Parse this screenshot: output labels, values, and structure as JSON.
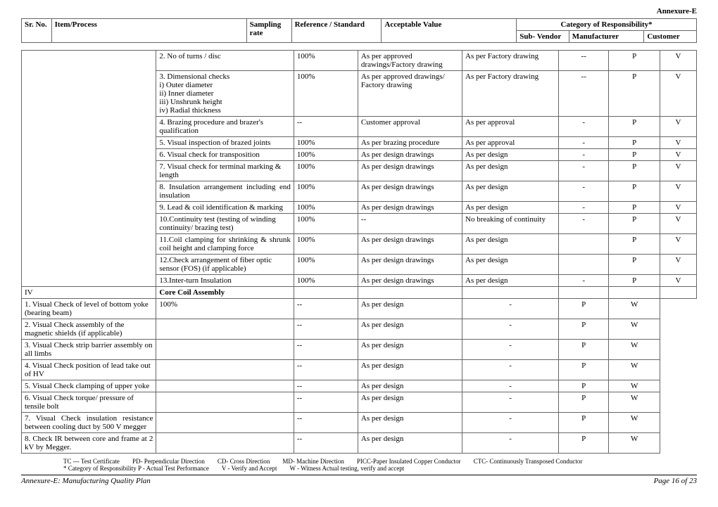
{
  "annexureTitle": "Annexure-E",
  "header": {
    "sr": "Sr. No.",
    "item": "Item/Process",
    "sampling": "Sampling rate",
    "reference": "Reference / Standard",
    "acceptable": "Acceptable Value",
    "category": "Category of Responsibility*",
    "sub": "Sub- Vendor",
    "man": "Manufacturer",
    "cust": "Customer"
  },
  "rows": [
    {
      "sr": "",
      "item": "2. No of turns / disc",
      "samp": "100%",
      "ref": "As per approved drawings/Factory drawing",
      "acc": "As per  Factory drawing",
      "sub": "--",
      "man": "P",
      "cust": "V"
    },
    {
      "sr": "",
      "item": "3. Dimensional checks\n    i) Outer diameter\n    ii) Inner diameter\n    iii) Unshrunk height\n    iv) Radial thickness",
      "samp": "100%",
      "ref": "As per approved drawings/\nFactory drawing",
      "acc": "As per  Factory drawing",
      "sub": "--",
      "man": "P",
      "cust": "V"
    },
    {
      "sr": "",
      "item": "4. Brazing procedure and brazer's qualification",
      "samp": "--",
      "ref": "Customer approval",
      "acc": "As per approval",
      "sub": "-",
      "man": "P",
      "cust": "V"
    },
    {
      "sr": "",
      "item": "5. Visual inspection of brazed joints",
      "samp": "100%",
      "ref": "As per brazing procedure",
      "acc": "As per approval",
      "sub": "-",
      "man": "P",
      "cust": "V"
    },
    {
      "sr": "",
      "item": "6. Visual check for transposition",
      "samp": "100%",
      "ref": "As per design drawings",
      "acc": "As per design",
      "sub": "-",
      "man": "P",
      "cust": "V"
    },
    {
      "sr": "",
      "item": "7. Visual check for terminal marking & length",
      "samp": "100%",
      "ref": "As per design drawings",
      "acc": "As per design",
      "sub": "-",
      "man": "P",
      "cust": "V"
    },
    {
      "sr": "",
      "item": "8. Insulation arrangement including end insulation",
      "samp": "100%",
      "ref": "As per design drawings",
      "acc": "As per design",
      "sub": "-",
      "man": "P",
      "cust": "V",
      "justify": true
    },
    {
      "sr": "",
      "item": "9. Lead & coil identification & marking",
      "samp": "100%",
      "ref": "As per design drawings",
      "acc": "As per design",
      "sub": "-",
      "man": "P",
      "cust": "V"
    },
    {
      "sr": "",
      "item": "10.Continuity test (testing of winding continuity/ brazing test)",
      "samp": "100%",
      "ref": "--",
      "acc": "No breaking of continuity",
      "sub": "-",
      "man": "P",
      "cust": "V"
    },
    {
      "sr": "",
      "item": "11.Coil clamping for shrinking & shrunk coil height and clamping force",
      "samp": "100%",
      "ref": "As per design drawings",
      "acc": "As per design",
      "sub": "",
      "man": "P",
      "cust": "V",
      "justify": true
    },
    {
      "sr": "",
      "item": "12.Check arrangement of fiber optic sensor (FOS) (if applicable)",
      "samp": "100%",
      "ref": "As per design drawings",
      "acc": "As per design",
      "sub": "",
      "man": "P",
      "cust": "V"
    },
    {
      "sr": "",
      "item": "13.Inter-turn Insulation",
      "samp": "100%",
      "ref": "As per design drawings",
      "acc": "As per design",
      "sub": "-",
      "man": "P",
      "cust": "V"
    }
  ],
  "section": {
    "sr": "IV",
    "title": "Core Coil Assembly"
  },
  "rows2": [
    {
      "sr": "",
      "item": "1. Visual Check of level of bottom yoke (bearing beam)",
      "samp": "100%",
      "ref": "--",
      "acc": "As per design",
      "sub": "-",
      "man": "P",
      "cust": "W"
    },
    {
      "sr": "",
      "item": "2. Visual Check assembly of the magnetic shields (if applicable)",
      "samp": "",
      "ref": "--",
      "acc": "As per design",
      "sub": "-",
      "man": "P",
      "cust": "W"
    },
    {
      "sr": "",
      "item": "3. Visual Check strip barrier assembly on all limbs",
      "samp": "",
      "ref": "--",
      "acc": "As per design",
      "sub": "-",
      "man": "P",
      "cust": "W"
    },
    {
      "sr": "",
      "item": "4. Visual Check position of lead take out of HV",
      "samp": "",
      "ref": "--",
      "acc": "As per design",
      "sub": "-",
      "man": "P",
      "cust": "W"
    },
    {
      "sr": "",
      "item": "5. Visual Check clamping of upper yoke",
      "samp": "",
      "ref": "--",
      "acc": "As per design",
      "sub": "-",
      "man": "P",
      "cust": "W"
    },
    {
      "sr": "",
      "item": "6. Visual Check torque/ pressure of tensile bolt",
      "samp": "",
      "ref": "--",
      "acc": "As per design",
      "sub": "-",
      "man": "P",
      "cust": "W"
    },
    {
      "sr": "",
      "item": "7. Visual Check insulation resistance between cooling duct by 500 V megger",
      "samp": "",
      "ref": "--",
      "acc": "As per design",
      "sub": "-",
      "man": "P",
      "cust": "W",
      "justify": true
    },
    {
      "sr": "",
      "item": "8. Check IR between core and frame at 2 kV by Megger.",
      "samp": "",
      "ref": "--",
      "acc": "As per design",
      "sub": "-",
      "man": "P",
      "cust": "W",
      "justify": true
    }
  ],
  "legend": {
    "l1": [
      "TC --- Test Certificate",
      "PD- Perpendicular Direction",
      "CD-  Cross Direction",
      "MD-  Machine Direction",
      "PICC-Paper Insulated Copper Conductor",
      "CTC- Continuously Transposed Conductor"
    ],
    "l2": [
      "* Category  of Responsibility  P - Actual Test     Performance",
      "V - Verify and  Accept",
      "W - Witness Actual testing,  verify and  accept"
    ]
  },
  "footer": {
    "left": "Annexure-E: Manufacturing Quality Plan",
    "right": "Page 16 of 23"
  }
}
